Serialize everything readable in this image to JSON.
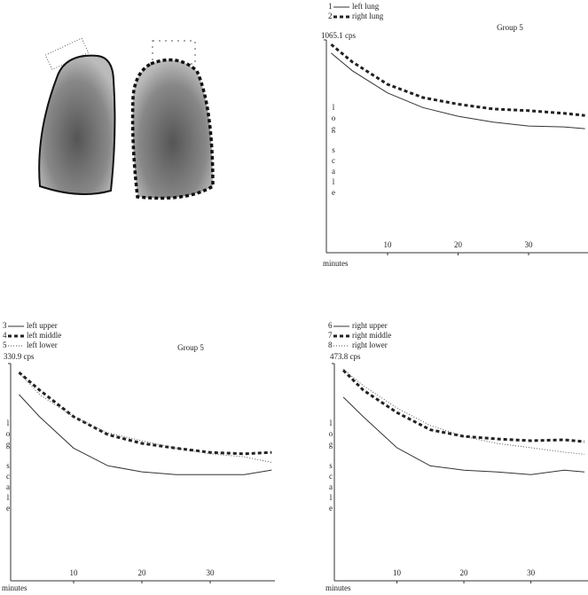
{
  "chart_data": [
    {
      "type": "line",
      "title": "Group 5",
      "y_label": "log scale",
      "x_label": "minutes",
      "log_scale": true,
      "x": [
        2,
        5,
        10,
        15,
        20,
        25,
        30,
        35,
        38
      ],
      "xlim": [
        0,
        38
      ],
      "xticks": [
        10,
        20,
        30
      ],
      "ylim": [
        100,
        1065.1
      ],
      "yticks": [
        {
          "value": 1065.1,
          "label": "1065.1 cps"
        }
      ],
      "series": [
        {
          "key": "1",
          "name": "left lung",
          "color": "#333333",
          "style": "solid",
          "values": [
            920,
            756,
            591,
            502,
            456,
            427,
            409,
            405,
            397
          ]
        },
        {
          "key": "2",
          "name": "right lung",
          "color": "#222222",
          "style": "dashed",
          "values": [
            1013,
            833,
            650,
            561,
            521,
            494,
            485,
            471,
            460
          ]
        }
      ]
    },
    {
      "type": "line",
      "title": "Group 5",
      "y_label": "log scale",
      "x_label": "minutes",
      "log_scale": true,
      "x": [
        2,
        5,
        10,
        15,
        20,
        25,
        30,
        35,
        39
      ],
      "xlim": [
        0,
        40
      ],
      "xticks": [
        10,
        20,
        30
      ],
      "ylim": [
        30,
        330.9
      ],
      "yticks": [
        {
          "value": 330.9,
          "label": "330.9 cps"
        }
      ],
      "series": [
        {
          "key": "3",
          "name": "left upper",
          "color": "#333333",
          "style": "solid",
          "values": [
            235,
            184,
            130,
            107,
            100,
            97,
            97,
            97,
            102
          ]
        },
        {
          "key": "4",
          "name": "left middle",
          "color": "#222222",
          "style": "dashed",
          "values": [
            300,
            247,
            184,
            151,
            137,
            130,
            124,
            122,
            124
          ]
        },
        {
          "key": "5",
          "name": "left lower",
          "color": "#555555",
          "style": "dotted",
          "values": [
            300,
            235,
            184,
            154,
            141,
            130,
            122,
            118,
            111
          ]
        }
      ]
    },
    {
      "type": "line",
      "y_label": "log scale",
      "x_label": "minutes",
      "log_scale": true,
      "x": [
        2,
        5,
        10,
        15,
        20,
        25,
        30,
        35,
        38
      ],
      "xlim": [
        0,
        38
      ],
      "xticks": [
        10,
        20,
        30
      ],
      "ylim": [
        43,
        473.8
      ],
      "yticks": [
        {
          "value": 473.8,
          "label": "473.8 cps"
        }
      ],
      "series": [
        {
          "key": "6",
          "name": "right upper",
          "color": "#333333",
          "style": "solid",
          "values": [
            327,
            263,
            187,
            153,
            146,
            143,
            139,
            146,
            143
          ]
        },
        {
          "key": "7",
          "name": "right middle",
          "color": "#222222",
          "style": "dashed",
          "values": [
            440,
            353,
            276,
            228,
            212,
            206,
            202,
            204,
            200
          ]
        },
        {
          "key": "8",
          "name": "right lower",
          "color": "#555555",
          "style": "dotted",
          "values": [
            445,
            371,
            290,
            239,
            212,
            196,
            187,
            178,
            174
          ]
        }
      ]
    }
  ]
}
